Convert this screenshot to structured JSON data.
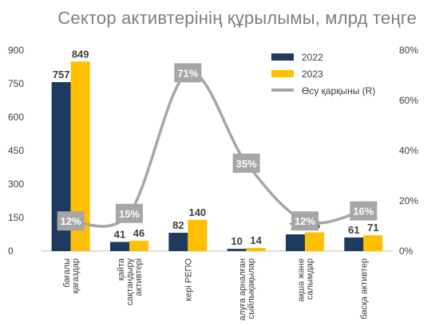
{
  "chart_data": {
    "type": "bar",
    "title": "Сектор активтерінің құрылымы, млрд теңге",
    "categories": [
      [
        "бағалы",
        "қағаздар"
      ],
      [
        "қайта",
        "сақтандыру",
        "активтері"
      ],
      [
        "кері РЕПО"
      ],
      [
        "алуға арналған",
        "сыйлықақылар"
      ],
      [
        "ақша және",
        "салымдар"
      ],
      [
        "басқа активтер"
      ]
    ],
    "series": [
      {
        "name": "2022",
        "type": "bar",
        "axis": "left",
        "color": "#1f3a5f",
        "values": [
          757,
          41,
          82,
          10,
          75,
          61
        ],
        "labels": [
          "757",
          "41",
          "82",
          "10",
          "75",
          "61"
        ]
      },
      {
        "name": "2023",
        "type": "bar",
        "axis": "left",
        "color": "#ffc000",
        "values": [
          849,
          46,
          140,
          14,
          84,
          71
        ],
        "labels": [
          "849",
          "46",
          "140",
          "14",
          "84",
          "71"
        ]
      },
      {
        "name": "Өсу қарқыны (R)",
        "type": "line",
        "axis": "right",
        "color": "#a6a6a6",
        "values": [
          12,
          15,
          71,
          35,
          12,
          16
        ],
        "labels": [
          "12%",
          "15%",
          "71%",
          "35%",
          "12%",
          "16%"
        ]
      }
    ],
    "y_left": {
      "min": 0,
      "max": 900,
      "ticks": [
        "0",
        "150",
        "300",
        "450",
        "600",
        "750",
        "900"
      ]
    },
    "y_right": {
      "min": 0,
      "max": 80,
      "ticks": [
        "0%",
        "20%",
        "40%",
        "60%",
        "80%"
      ]
    },
    "grid": false,
    "legend_position": "top-right"
  }
}
